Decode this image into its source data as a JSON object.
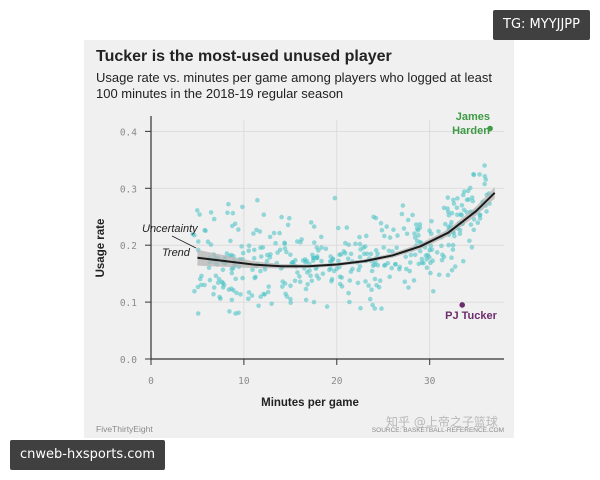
{
  "badges": {
    "top": "TG: MYYJJPP",
    "bottom": "cnweb-hxsports.com"
  },
  "colors": {
    "background": "#f0f0f0",
    "dots": "#45c1c4",
    "trend": "#1a1a1a",
    "band": "#b5b5b5",
    "harden": "#3f9a45",
    "tucker": "#6b2d6b",
    "grid": "#d8d8d8",
    "text": "#222222",
    "muted": "#8a8a8a"
  },
  "chart_data": {
    "type": "scatter",
    "title": "Tucker is the most-used unused player",
    "subtitle": "Usage rate vs. minutes per game among players who logged at least 100 minutes in the 2018-19 regular season",
    "xlabel": "Minutes per game",
    "ylabel": "Usage rate",
    "xlim": [
      0,
      38
    ],
    "ylim": [
      0,
      0.42
    ],
    "x_ticks": [
      0,
      10,
      20,
      30
    ],
    "x_tick_labels": [
      "0",
      "10",
      "20",
      "30"
    ],
    "y_ticks": [
      0,
      0.1,
      0.2,
      0.3,
      0.4
    ],
    "y_tick_labels": [
      "0.0",
      "0.1",
      "0.2",
      "0.3",
      "0.4"
    ],
    "grid": true,
    "source_left": "FiveThirtyEight",
    "source_right": "SOURCE: BASKETBALL-REFERENCE.COM",
    "watermark": "知乎 @上帝之子篮球",
    "trend": {
      "label": "Trend",
      "x": [
        5,
        8,
        11,
        14,
        17,
        20,
        23,
        26,
        29,
        32,
        35,
        37
      ],
      "y": [
        0.178,
        0.172,
        0.166,
        0.163,
        0.163,
        0.166,
        0.172,
        0.182,
        0.198,
        0.222,
        0.26,
        0.292
      ],
      "band_label": "Uncertainty",
      "band_halfwidth": [
        0.014,
        0.01,
        0.006,
        0.004,
        0.003,
        0.003,
        0.003,
        0.004,
        0.005,
        0.006,
        0.008,
        0.01
      ]
    },
    "highlights": [
      {
        "label_line1": "James",
        "label_line2": "Harden",
        "x": 36.5,
        "y": 0.405
      },
      {
        "label_line1": "PJ Tucker",
        "x": 33.5,
        "y": 0.095
      }
    ],
    "point_count": 420
  }
}
